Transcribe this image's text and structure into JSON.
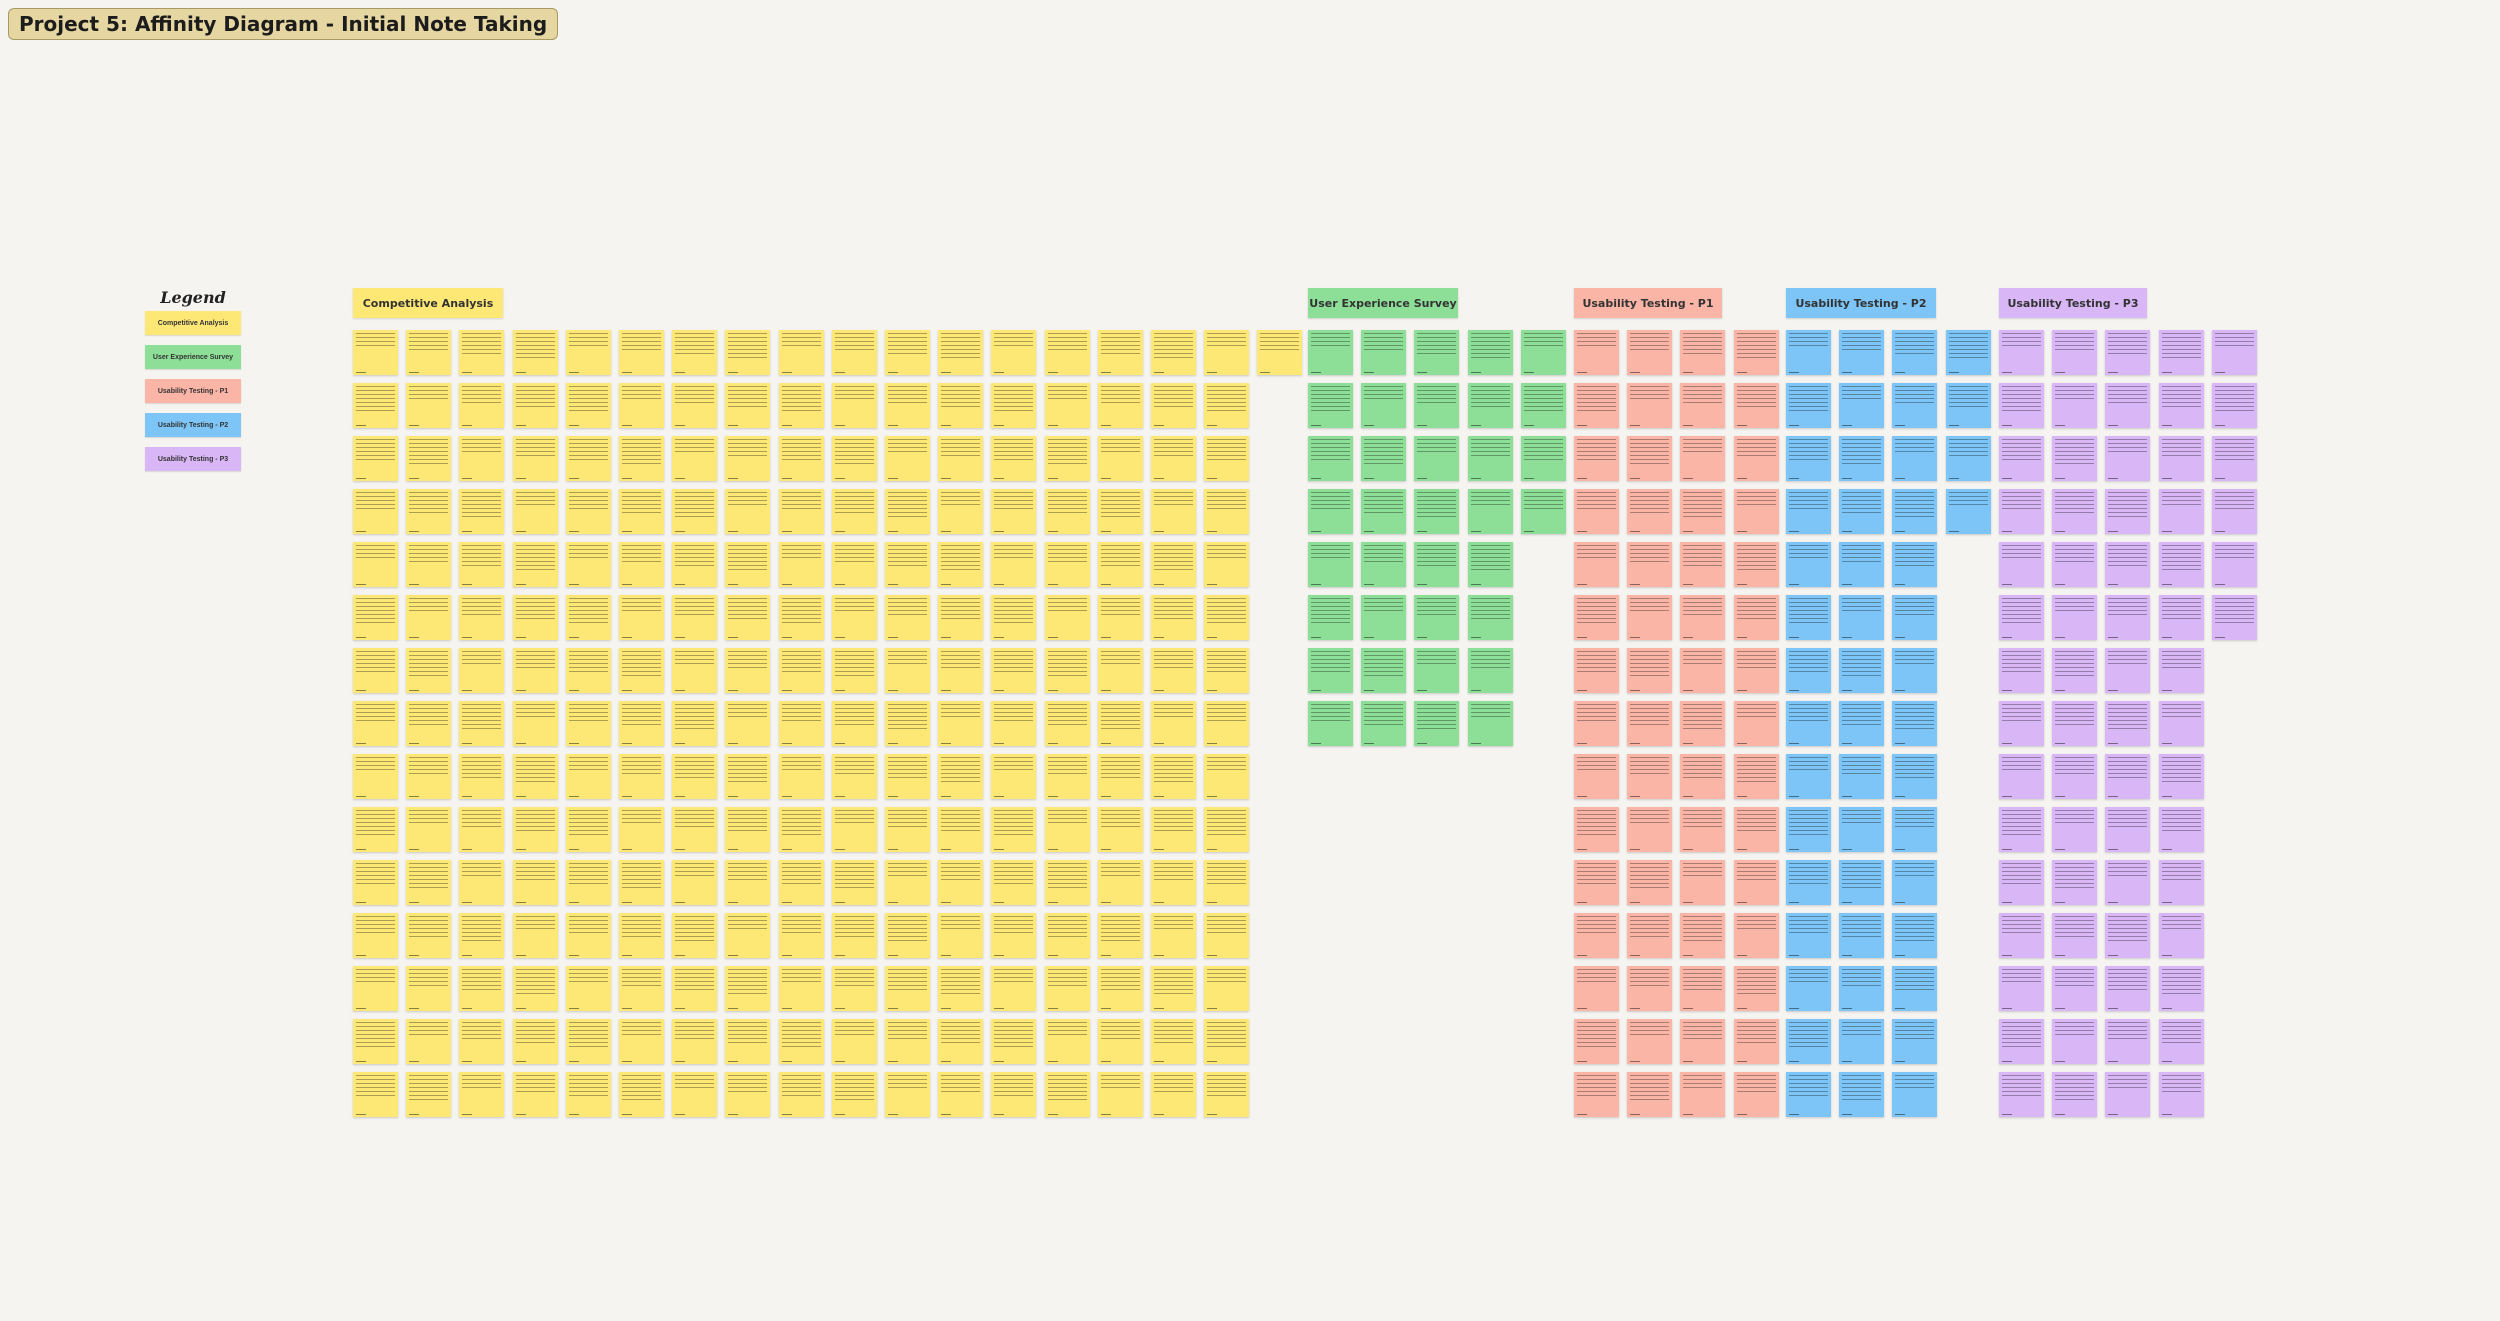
{
  "board": {
    "title": "Project 5: Affinity Diagram - Initial Note Taking"
  },
  "legend": {
    "title": "Legend",
    "items": [
      {
        "label": "Competitive Analysis",
        "color": "#fde876"
      },
      {
        "label": "User Experience Survey",
        "color": "#8ddf98"
      },
      {
        "label": "Usability Testing - P1",
        "color": "#fbb5a6"
      },
      {
        "label": "Usability Testing - P2",
        "color": "#7cc5f6"
      },
      {
        "label": "Usability Testing - P3",
        "color": "#d9b6f6"
      }
    ]
  },
  "columns": [
    {
      "key": "competitive",
      "label": "Competitive Analysis",
      "color": "#fde876",
      "note_columns": 18,
      "note_counts": [
        18,
        17,
        17,
        17,
        17,
        17,
        17,
        17,
        17,
        17,
        17,
        17,
        17,
        17,
        17
      ]
    },
    {
      "key": "survey",
      "label": "User Experience Survey",
      "color": "#8ddf98",
      "note_columns": 5,
      "note_counts": [
        5,
        5,
        5,
        5,
        4,
        4,
        4,
        4
      ]
    },
    {
      "key": "p1",
      "label": "Usability Testing - P1",
      "color": "#fbb5a6",
      "note_columns": 4,
      "note_counts": [
        4,
        4,
        4,
        4,
        4,
        4,
        4,
        4,
        4,
        4,
        4,
        4,
        4,
        4,
        4
      ]
    },
    {
      "key": "p2",
      "label": "Usability Testing - P2",
      "color": "#7cc5f6",
      "note_columns": 4,
      "note_counts": [
        4,
        4,
        4,
        4,
        3,
        3,
        3,
        3,
        3,
        3,
        3,
        3,
        3,
        3,
        3
      ]
    },
    {
      "key": "p3",
      "label": "Usability Testing - P3",
      "color": "#d9b6f6",
      "note_columns": 5,
      "note_counts": [
        5,
        5,
        5,
        5,
        5,
        5,
        4,
        4,
        4,
        4,
        4,
        4,
        4,
        4,
        4
      ]
    }
  ]
}
